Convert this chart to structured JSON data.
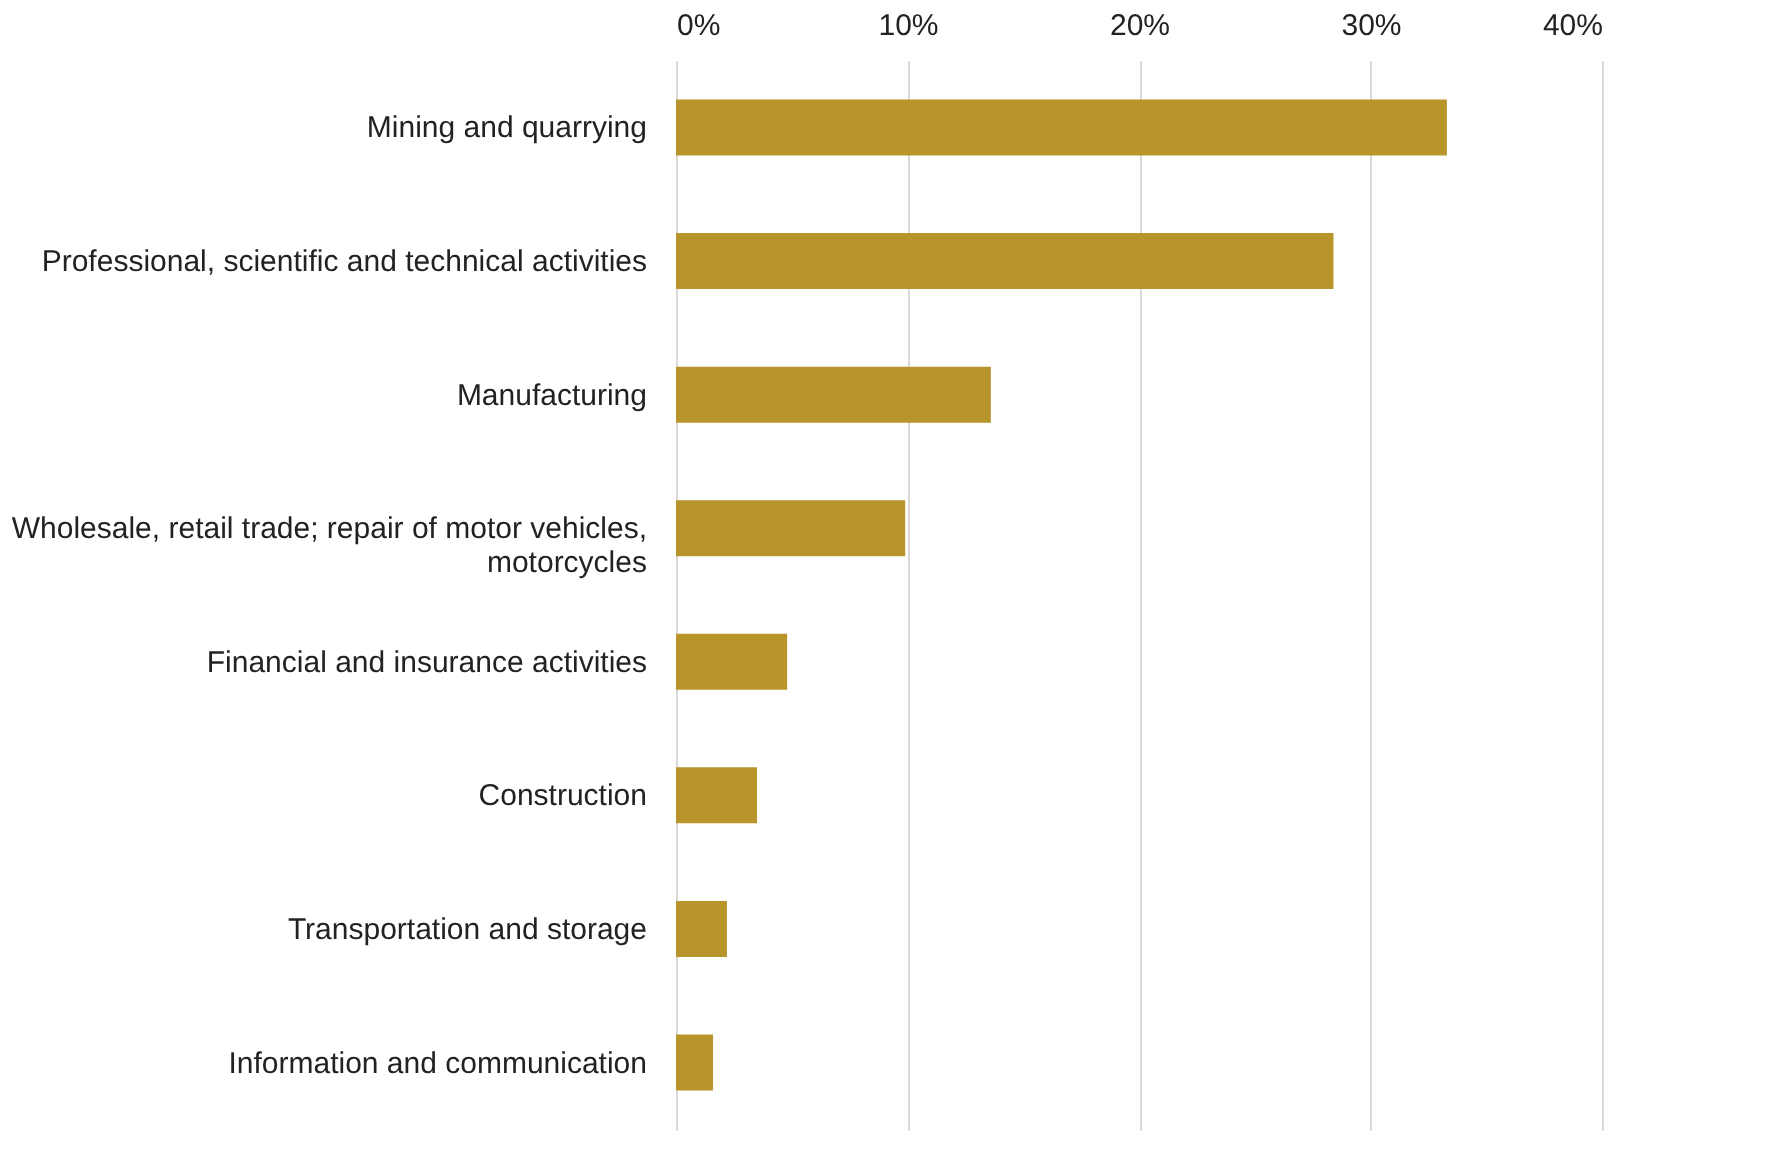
{
  "chart_data": {
    "type": "bar",
    "orientation": "horizontal",
    "categories": [
      "Mining and quarrying",
      "Professional, scientific and technical activities",
      "Manufacturing",
      "Wholesale, retail trade; repair of motor vehicles, motorcycles",
      "Financial and insurance activities",
      "Construction",
      "Transportation and storage",
      "Information and communication"
    ],
    "values": [
      33.3,
      28.4,
      13.6,
      9.9,
      4.8,
      3.5,
      2.2,
      1.6
    ],
    "color": "#b8952a",
    "xlim": [
      0,
      40
    ],
    "xticks": [
      {
        "value": 0,
        "label": "0%"
      },
      {
        "value": 10,
        "label": "10%"
      },
      {
        "value": 20,
        "label": "20%"
      },
      {
        "value": 30,
        "label": "30%"
      },
      {
        "value": 40,
        "label": "40%"
      }
    ],
    "grid": "x"
  }
}
